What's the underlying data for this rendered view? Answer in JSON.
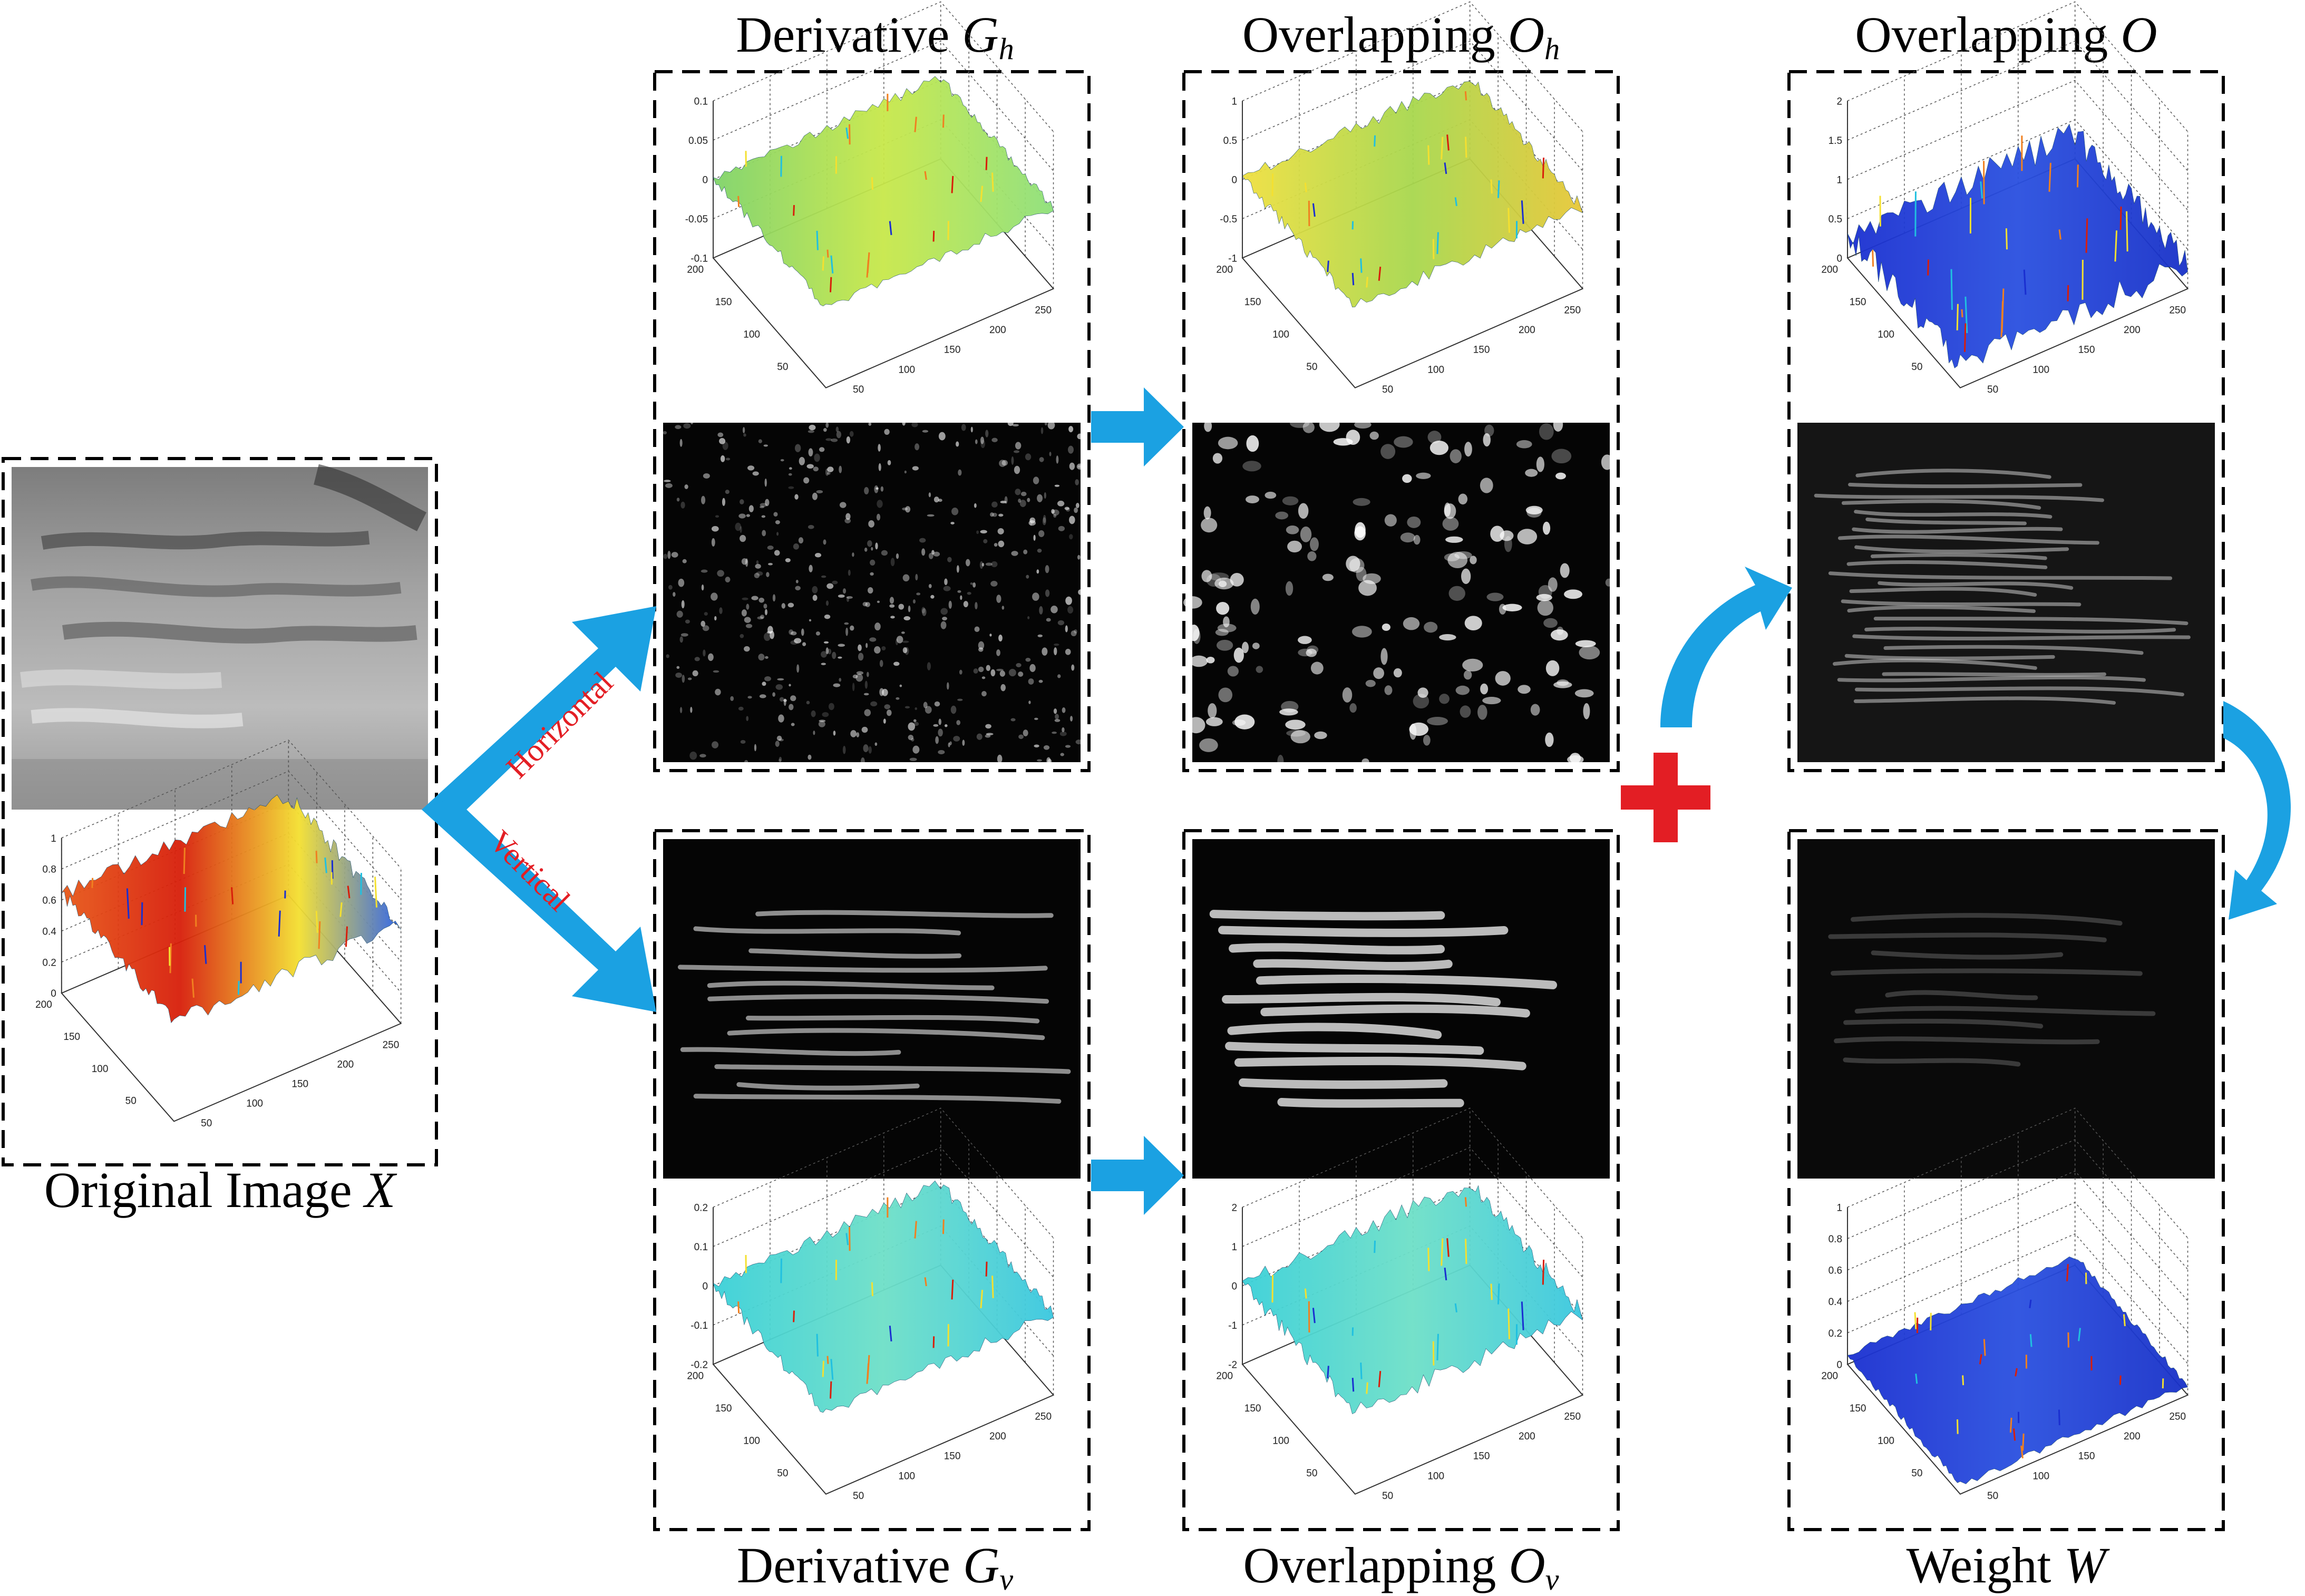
{
  "captions": {
    "original": {
      "text": "Original Image ",
      "sym": "X",
      "sub": ""
    },
    "deriv_h": {
      "text": "Derivative ",
      "sym": "G",
      "sub": "h"
    },
    "overlap_h": {
      "text": "Overlapping ",
      "sym": "O",
      "sub": "h"
    },
    "overlap": {
      "text": "Overlapping ",
      "sym": "O",
      "sub": ""
    },
    "deriv_v": {
      "text": "Derivative ",
      "sym": "G",
      "sub": "v"
    },
    "overlap_v": {
      "text": "Overlapping ",
      "sym": "O",
      "sub": "v"
    },
    "weight": {
      "text": "Weight ",
      "sym": "W",
      "sub": ""
    }
  },
  "arrow_labels": {
    "horizontal": "Horizontal",
    "vertical": "Vertical"
  },
  "operator": "+",
  "plots": {
    "original": {
      "z_ticks": [
        "0",
        "0.2",
        "0.4",
        "0.6",
        "0.8",
        "1"
      ],
      "y_ticks": [
        "200",
        "150",
        "100",
        "50"
      ],
      "x_ticks": [
        "50",
        "100",
        "150",
        "200",
        "250"
      ]
    },
    "deriv_h": {
      "z_ticks": [
        "-0.1",
        "-0.05",
        "0",
        "0.05",
        "0.1"
      ],
      "y_ticks": [
        "200",
        "150",
        "100",
        "50"
      ],
      "x_ticks": [
        "50",
        "100",
        "150",
        "200",
        "250"
      ]
    },
    "overlap_h": {
      "z_ticks": [
        "-1",
        "-0.5",
        "0",
        "0.5",
        "1"
      ],
      "y_ticks": [
        "200",
        "150",
        "100",
        "50"
      ],
      "x_ticks": [
        "50",
        "100",
        "150",
        "200",
        "250"
      ]
    },
    "overlap": {
      "z_ticks": [
        "0",
        "0.5",
        "1",
        "1.5",
        "2"
      ],
      "y_ticks": [
        "200",
        "150",
        "100",
        "50"
      ],
      "x_ticks": [
        "50",
        "100",
        "150",
        "200",
        "250"
      ]
    },
    "deriv_v": {
      "z_ticks": [
        "-0.2",
        "-0.1",
        "0",
        "0.1",
        "0.2"
      ],
      "y_ticks": [
        "200",
        "150",
        "100",
        "50"
      ],
      "x_ticks": [
        "50",
        "100",
        "150",
        "200",
        "250"
      ]
    },
    "overlap_v": {
      "z_ticks": [
        "-2",
        "-1",
        "0",
        "1",
        "2"
      ],
      "y_ticks": [
        "200",
        "150",
        "100",
        "50"
      ],
      "x_ticks": [
        "50",
        "100",
        "150",
        "200",
        "250"
      ]
    },
    "weight": {
      "z_ticks": [
        "0",
        "0.2",
        "0.4",
        "0.6",
        "0.8",
        "1"
      ],
      "y_ticks": [
        "200",
        "150",
        "100",
        "50"
      ],
      "x_ticks": [
        "50",
        "100",
        "150",
        "200",
        "250"
      ]
    }
  },
  "colors": {
    "arrow": "#1ba1e2",
    "plus": "#e31e24",
    "dashed_border": "#000000",
    "map_background": "#050505"
  }
}
